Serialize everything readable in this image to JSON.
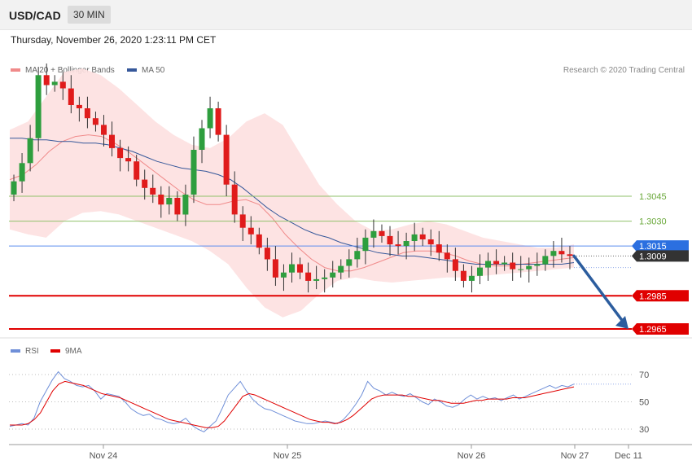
{
  "header": {
    "pair": "USD/CAD",
    "timeframe": "30 MIN"
  },
  "datetime": "Thursday, November 26, 2020 1:23:11 PM CET",
  "credit": "Research © 2020 Trading Central",
  "colors": {
    "bg": "#ffffff",
    "bull": "#2e9e3e",
    "bear": "#e01b1b",
    "band": "#fde0e0",
    "ma20": "#f08a8a",
    "ma50": "#36589a",
    "support_line": "#e00000",
    "resist_line": "#8fc16a",
    "current_line": "#5b8def",
    "arrow": "#2c5d9e",
    "rsi": "#6f8fd8",
    "rsi_ma": "#e00000"
  },
  "chart_data": [
    {
      "type": "candlestick",
      "legend": [
        {
          "name": "MA 20 + Bollinger Bands",
          "color": "#f08a8a"
        },
        {
          "name": "MA 50",
          "color": "#36589a"
        }
      ],
      "x_ticks": [
        "Nov 24",
        "Nov 25",
        "Nov 26",
        "Nov 27",
        "Dec 11"
      ],
      "ylim": [
        1.295,
        1.315
      ],
      "levels": [
        {
          "label": "1.3045",
          "value": 1.3045,
          "kind": "resistance"
        },
        {
          "label": "1.3030",
          "value": 1.303,
          "kind": "resistance"
        },
        {
          "label": "1.3015",
          "value": 1.3015,
          "kind": "current-blue"
        },
        {
          "label": "1.3009",
          "value": 1.3009,
          "kind": "last-price"
        },
        {
          "label": "1.2985",
          "value": 1.2985,
          "kind": "support"
        },
        {
          "label": "1.2965",
          "value": 1.2965,
          "kind": "support"
        }
      ],
      "arrow": {
        "from": 1.3009,
        "to": 1.2965,
        "direction": "down"
      },
      "close_series": [
        1.3054,
        1.3065,
        1.308,
        1.3118,
        1.3112,
        1.3114,
        1.311,
        1.31,
        1.3098,
        1.3092,
        1.3088,
        1.3082,
        1.3074,
        1.3068,
        1.3066,
        1.3055,
        1.305,
        1.3046,
        1.304,
        1.3044,
        1.3034,
        1.3046,
        1.3073,
        1.3086,
        1.3098,
        1.3082,
        1.3052,
        1.3034,
        1.3026,
        1.3022,
        1.3014,
        1.3007,
        1.2996,
        1.2999,
        1.3004,
        1.2999,
        1.2994,
        1.2995,
        1.2996,
        1.2999,
        1.3003,
        1.3007,
        1.3012,
        1.302,
        1.3024,
        1.3021,
        1.3016,
        1.3015,
        1.3018,
        1.3022,
        1.3019,
        1.3016,
        1.3011,
        1.3007,
        1.3,
        1.2994,
        1.2997,
        1.3002,
        1.3006,
        1.3004,
        1.3005,
        1.3001,
        1.3001,
        1.3003,
        1.3004,
        1.3009,
        1.3012,
        1.301,
        1.3009
      ],
      "ma50_series": [
        1.308,
        1.308,
        1.3079,
        1.3079,
        1.3078,
        1.3078,
        1.3077,
        1.3077,
        1.3076,
        1.3074,
        1.3072,
        1.3069,
        1.3066,
        1.3064,
        1.3062,
        1.3061,
        1.306,
        1.3058,
        1.3055,
        1.305,
        1.3044,
        1.3038,
        1.3033,
        1.3029,
        1.3025,
        1.3022,
        1.302,
        1.3017,
        1.3015,
        1.3013,
        1.3011,
        1.301,
        1.3009,
        1.3009,
        1.3008,
        1.3007,
        1.3006,
        1.3005,
        1.3004,
        1.3004,
        1.3004,
        1.3004,
        1.3004,
        1.3004,
        1.3004,
        1.3004,
        1.3005
      ],
      "ma20_series": [
        1.3055,
        1.3058,
        1.3064,
        1.3072,
        1.3078,
        1.3081,
        1.3082,
        1.3081,
        1.3077,
        1.3072,
        1.3066,
        1.306,
        1.3054,
        1.3048,
        1.3043,
        1.304,
        1.304,
        1.3042,
        1.3043,
        1.304,
        1.3032,
        1.3022,
        1.3014,
        1.3007,
        1.3002,
        1.3,
        1.3,
        1.3002,
        1.3005,
        1.3008,
        1.3011,
        1.3012,
        1.3012,
        1.3011,
        1.3009,
        1.3006,
        1.3004,
        1.3003,
        1.3003,
        1.3004,
        1.3005,
        1.3006,
        1.3007,
        1.3008
      ],
      "bb_upper_series": [
        1.3085,
        1.309,
        1.3105,
        1.312,
        1.3122,
        1.3118,
        1.311,
        1.31,
        1.309,
        1.3082,
        1.3076,
        1.3074,
        1.308,
        1.309,
        1.3095,
        1.3088,
        1.307,
        1.3052,
        1.304,
        1.303,
        1.3024,
        1.3025,
        1.3028,
        1.303,
        1.3028,
        1.3024,
        1.302,
        1.3018,
        1.3016,
        1.3014,
        1.3014,
        1.3016
      ],
      "bb_lower_series": [
        1.3025,
        1.3022,
        1.302,
        1.303,
        1.3035,
        1.3036,
        1.3034,
        1.303,
        1.3026,
        1.3022,
        1.3018,
        1.3012,
        1.3004,
        1.299,
        1.2978,
        1.2972,
        1.2976,
        1.2986,
        1.2994,
        1.2996,
        1.2994,
        1.2993,
        1.2994,
        1.2995,
        1.2996,
        1.2996,
        1.2997,
        1.2998,
        1.2999,
        1.3,
        1.3001,
        1.3002
      ],
      "rsi_legend": [
        {
          "name": "RSI",
          "color": "#6f8fd8"
        },
        {
          "name": "9MA",
          "color": "#e00000"
        }
      ],
      "rsi_ticks": [
        "70",
        "50",
        "30"
      ],
      "rsi_ylim": [
        20,
        80
      ],
      "rsi_series": [
        32,
        33,
        34,
        33,
        38,
        50,
        58,
        66,
        72,
        67,
        65,
        62,
        61,
        62,
        58,
        52,
        56,
        55,
        54,
        50,
        45,
        42,
        40,
        41,
        38,
        37,
        35,
        34,
        35,
        38,
        33,
        30,
        28,
        32,
        36,
        45,
        55,
        60,
        65,
        58,
        52,
        48,
        45,
        44,
        42,
        40,
        38,
        36,
        35,
        34,
        34,
        35,
        36,
        35,
        34,
        37,
        42,
        48,
        55,
        65,
        60,
        58,
        55,
        57,
        55,
        54,
        56,
        53,
        50,
        48,
        52,
        50,
        47,
        46,
        48,
        52,
        55,
        52,
        54,
        52,
        53,
        51,
        53,
        55,
        52,
        54,
        56,
        58,
        60,
        62,
        60,
        62,
        61,
        63
      ],
      "rsi_ma_series": [
        33,
        33,
        33,
        34,
        37,
        42,
        50,
        58,
        63,
        65,
        64,
        63,
        62,
        60,
        58,
        56,
        55,
        54,
        53,
        51,
        49,
        47,
        45,
        43,
        41,
        39,
        37,
        36,
        35,
        34,
        33,
        32,
        31,
        31,
        32,
        36,
        42,
        48,
        54,
        56,
        55,
        53,
        51,
        49,
        47,
        45,
        43,
        41,
        39,
        37,
        36,
        35,
        35,
        34,
        35,
        37,
        40,
        44,
        48,
        52,
        54,
        55,
        55,
        55,
        55,
        54,
        54,
        53,
        52,
        51,
        51,
        50,
        49,
        49,
        49,
        50,
        51,
        51,
        52,
        52,
        52,
        52,
        53,
        53,
        53,
        54,
        55,
        56,
        57,
        58,
        59,
        60,
        61
      ]
    }
  ]
}
